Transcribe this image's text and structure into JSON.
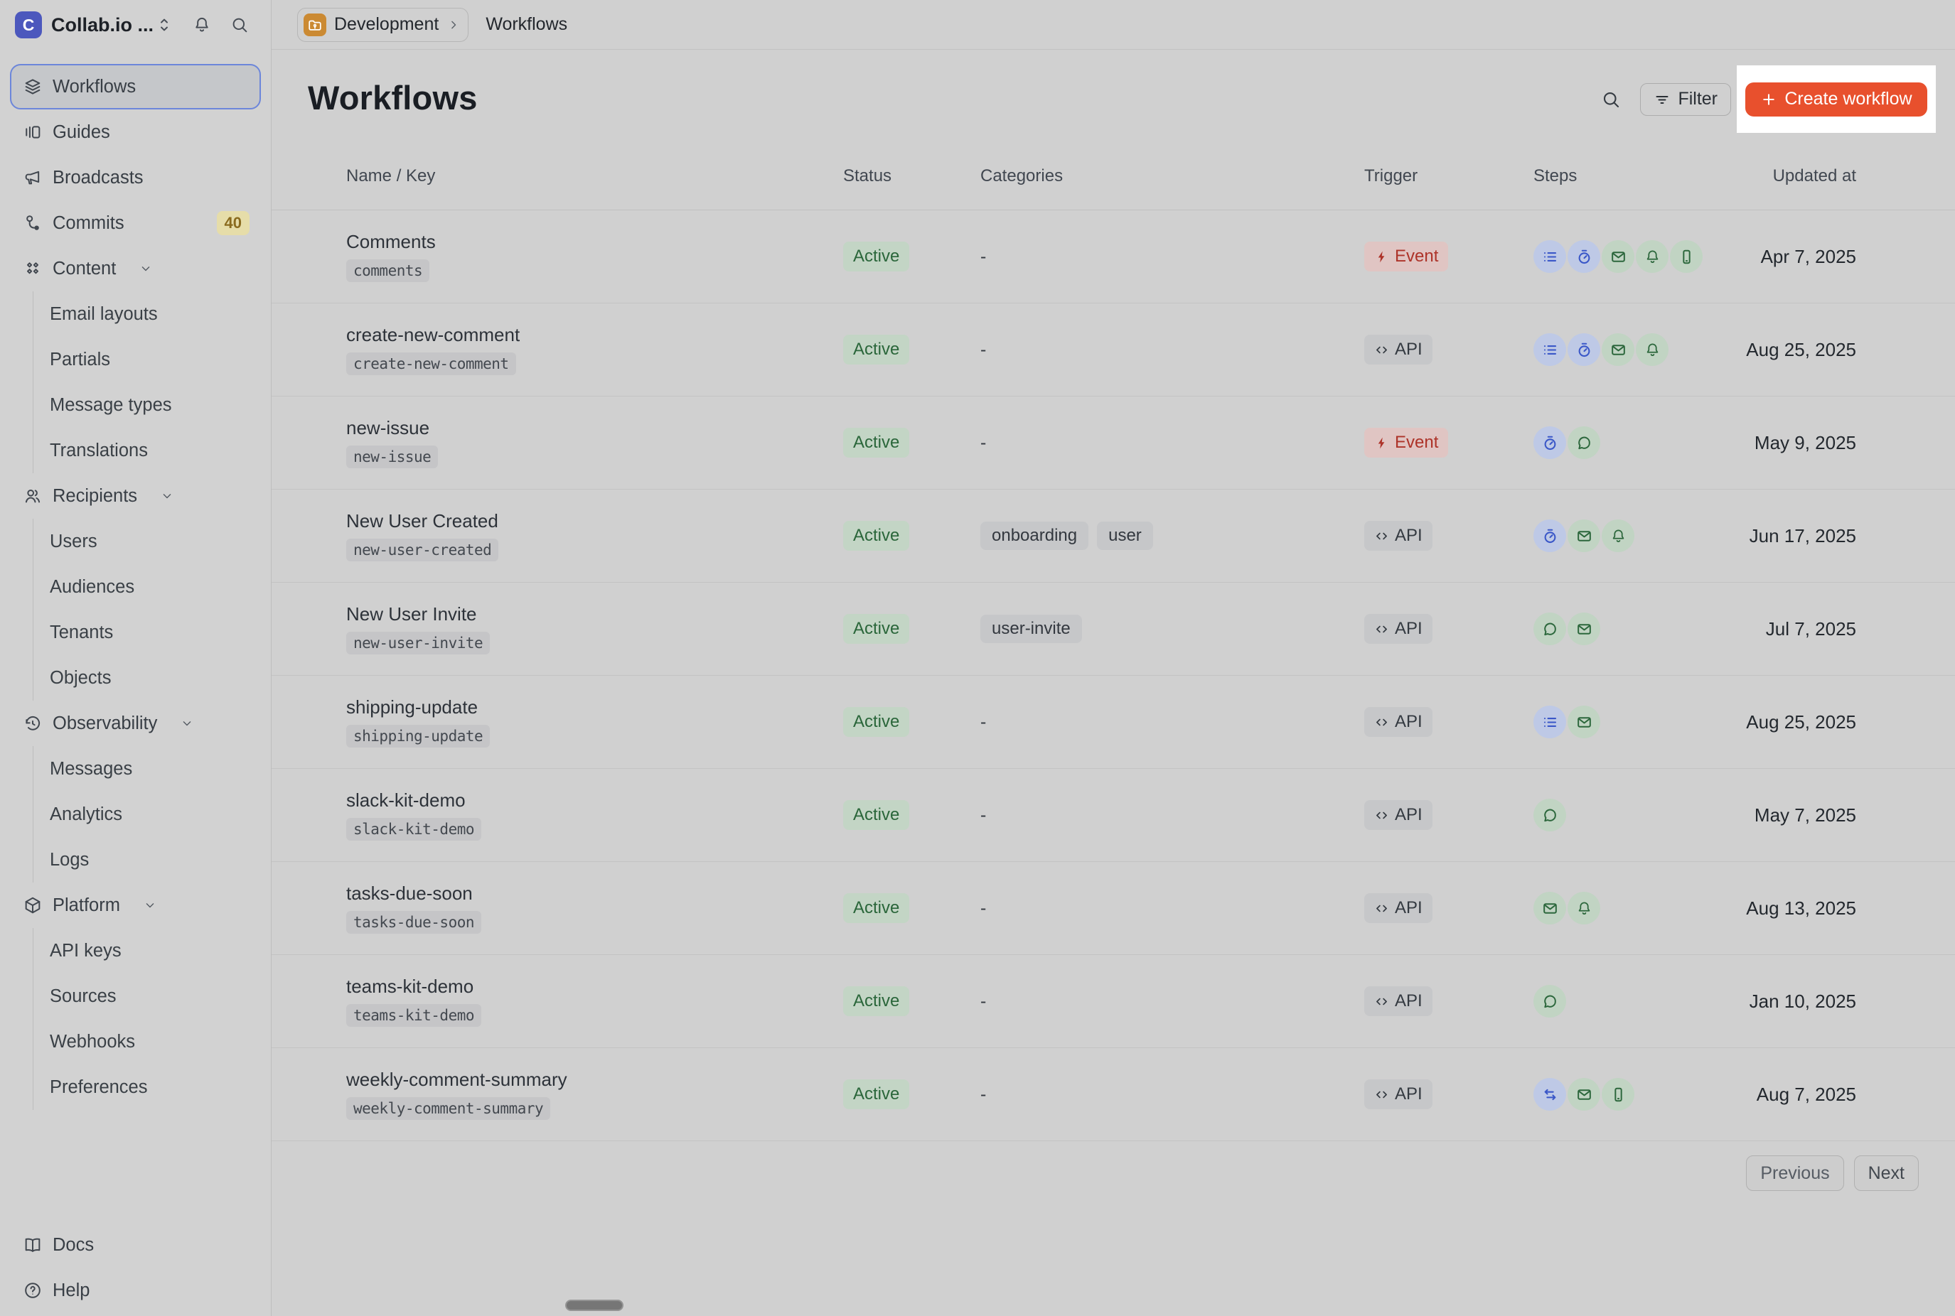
{
  "sidebar": {
    "workspace": {
      "name": "Collab.io ...",
      "logo_letter": "C"
    },
    "nav": [
      {
        "label": "Workflows",
        "icon": "layers",
        "selected": true
      },
      {
        "label": "Guides",
        "icon": "guides"
      },
      {
        "label": "Broadcasts",
        "icon": "megaphone"
      },
      {
        "label": "Commits",
        "icon": "commit",
        "badge": "40"
      },
      {
        "label": "Content",
        "icon": "content",
        "expandable": true,
        "children": [
          "Email layouts",
          "Partials",
          "Message types",
          "Translations"
        ]
      },
      {
        "label": "Recipients",
        "icon": "users",
        "expandable": true,
        "children": [
          "Users",
          "Audiences",
          "Tenants",
          "Objects"
        ]
      },
      {
        "label": "Observability",
        "icon": "history",
        "expandable": true,
        "children": [
          "Messages",
          "Analytics",
          "Logs"
        ]
      },
      {
        "label": "Platform",
        "icon": "box",
        "expandable": true,
        "children": [
          "API keys",
          "Sources",
          "Webhooks",
          "Preferences"
        ]
      }
    ],
    "footer": [
      {
        "label": "Docs",
        "icon": "book"
      },
      {
        "label": "Help",
        "icon": "help"
      }
    ]
  },
  "topbar": {
    "environment": "Development",
    "breadcrumb_page": "Workflows"
  },
  "header": {
    "title": "Workflows",
    "filter_label": "Filter",
    "create_label": "Create workflow"
  },
  "table": {
    "columns": [
      "Name / Key",
      "Status",
      "Categories",
      "Trigger",
      "Steps",
      "Updated at"
    ],
    "rows": [
      {
        "name": "Comments",
        "key": "comments",
        "status": "Active",
        "categories": [],
        "trigger": "Event",
        "steps": [
          "list",
          "timer",
          "email",
          "bell",
          "phone"
        ],
        "updated": "Apr 7, 2025"
      },
      {
        "name": "create-new-comment",
        "key": "create-new-comment",
        "status": "Active",
        "categories": [],
        "trigger": "API",
        "steps": [
          "list",
          "timer",
          "email",
          "bell"
        ],
        "updated": "Aug 25, 2025"
      },
      {
        "name": "new-issue",
        "key": "new-issue",
        "status": "Active",
        "categories": [],
        "trigger": "Event",
        "steps": [
          "timer",
          "chat"
        ],
        "updated": "May 9, 2025"
      },
      {
        "name": "New User Created",
        "key": "new-user-created",
        "status": "Active",
        "categories": [
          "onboarding",
          "user"
        ],
        "trigger": "API",
        "steps": [
          "timer",
          "email",
          "bell"
        ],
        "updated": "Jun 17, 2025"
      },
      {
        "name": "New User Invite",
        "key": "new-user-invite",
        "status": "Active",
        "categories": [
          "user-invite"
        ],
        "trigger": "API",
        "steps": [
          "chat",
          "email"
        ],
        "updated": "Jul 7, 2025"
      },
      {
        "name": "shipping-update",
        "key": "shipping-update",
        "status": "Active",
        "categories": [],
        "trigger": "API",
        "steps": [
          "list",
          "email"
        ],
        "updated": "Aug 25, 2025"
      },
      {
        "name": "slack-kit-demo",
        "key": "slack-kit-demo",
        "status": "Active",
        "categories": [],
        "trigger": "API",
        "steps": [
          "chat"
        ],
        "updated": "May 7, 2025"
      },
      {
        "name": "tasks-due-soon",
        "key": "tasks-due-soon",
        "status": "Active",
        "categories": [],
        "trigger": "API",
        "steps": [
          "email",
          "bell"
        ],
        "updated": "Aug 13, 2025"
      },
      {
        "name": "teams-kit-demo",
        "key": "teams-kit-demo",
        "status": "Active",
        "categories": [],
        "trigger": "API",
        "steps": [
          "chat"
        ],
        "updated": "Jan 10, 2025"
      },
      {
        "name": "weekly-comment-summary",
        "key": "weekly-comment-summary",
        "status": "Active",
        "categories": [],
        "trigger": "API",
        "steps": [
          "swap",
          "email",
          "phone"
        ],
        "updated": "Aug 7, 2025"
      }
    ],
    "empty_categories_placeholder": "-"
  },
  "pagination": {
    "previous": "Previous",
    "next": "Next"
  },
  "colors": {
    "accent_orange": "#e8502d",
    "env_folder_orange": "#cb8a33",
    "logo_indigo": "#4c58bd",
    "active_badge_bg": "#c3d5c5",
    "active_badge_text": "#2a663a",
    "event_badge_bg": "#e0c5c3",
    "event_badge_text": "#ad3329",
    "api_badge_bg": "#c6c7c9",
    "api_badge_text": "#343a41",
    "step_blue_bg": "#bec9e6",
    "step_blue_icon": "#3a57c8",
    "step_green_bg": "#c1d4c3",
    "step_green_icon": "#2c673c",
    "workflow_icon_red": "#b3382c",
    "commits_badge_bg": "#e6dda9",
    "commits_badge_text": "#8a6b1e",
    "highlight_box": "#ffffff"
  }
}
